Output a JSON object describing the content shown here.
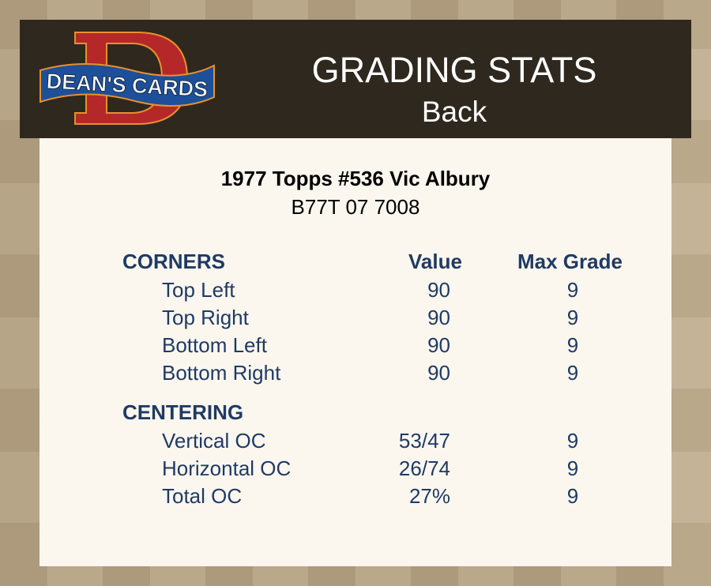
{
  "header": {
    "logo_text": "DEAN'S CARDS",
    "title": "GRADING STATS",
    "subtitle": "Back"
  },
  "card": {
    "name": "1977 Topps #536 Vic Albury",
    "code": "B77T 07 7008"
  },
  "columns": {
    "value": "Value",
    "max_grade": "Max Grade"
  },
  "corners": {
    "heading": "CORNERS",
    "rows": [
      {
        "label": "Top Left",
        "value": "90",
        "max": "9"
      },
      {
        "label": "Top Right",
        "value": "90",
        "max": "9"
      },
      {
        "label": "Bottom Left",
        "value": "90",
        "max": "9"
      },
      {
        "label": "Bottom Right",
        "value": "90",
        "max": "9"
      }
    ]
  },
  "centering": {
    "heading": "CENTERING",
    "rows": [
      {
        "label": "Vertical OC",
        "value": "53/47",
        "max": "9"
      },
      {
        "label": "Horizontal OC",
        "value": "26/74",
        "max": "9"
      },
      {
        "label": "Total OC",
        "value": "27%",
        "max": "9"
      }
    ]
  },
  "colors": {
    "text": "#1f3a64",
    "header_bg": "#2f281f",
    "panel_bg": "#fcf7ee"
  }
}
